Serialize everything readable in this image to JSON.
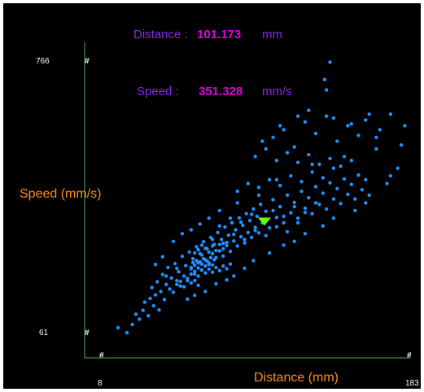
{
  "readout": {
    "distance_label": "Distance :",
    "distance_value": "101.173",
    "distance_unit": "mm",
    "speed_label": "Speed :",
    "speed_value": "351.328",
    "speed_unit": "mm/s"
  },
  "colors": {
    "background": "#000000",
    "axis": "#4caf50",
    "points": "#1e90ff",
    "cursor": "#66ff00",
    "axis_title": "#ff8c1a",
    "readout_label": "#8a2be2",
    "readout_value": "#e000e0"
  },
  "chart_data": {
    "type": "scatter",
    "xlabel": "Distance (mm)",
    "ylabel": "Speed (mm/s)",
    "x_tick_labels": [
      "8",
      "183"
    ],
    "y_tick_labels": [
      "61",
      "766"
    ],
    "xlim": [
      8,
      183
    ],
    "ylim": [
      61,
      766
    ],
    "grid": false,
    "cursor": {
      "x": 101.173,
      "y": 351.328,
      "shape": "triangle-down"
    },
    "series": [
      {
        "points": [
          [
            19,
            76
          ],
          [
            24,
            63
          ],
          [
            27,
            84
          ],
          [
            29,
            111
          ],
          [
            31,
            98
          ],
          [
            33,
            121
          ],
          [
            34,
            142
          ],
          [
            36,
            107
          ],
          [
            37,
            152
          ],
          [
            38,
            180
          ],
          [
            39,
            133
          ],
          [
            40,
            161
          ],
          [
            41,
            195
          ],
          [
            42,
            122
          ],
          [
            43,
            170
          ],
          [
            44,
            214
          ],
          [
            45,
            149
          ],
          [
            46,
            188
          ],
          [
            47,
            232
          ],
          [
            48,
            176
          ],
          [
            49,
            205
          ],
          [
            50,
            168
          ],
          [
            51,
            242
          ],
          [
            52,
            198
          ],
          [
            53,
            221
          ],
          [
            54,
            184
          ],
          [
            55,
            261
          ],
          [
            56,
            210
          ],
          [
            57,
            237
          ],
          [
            58,
            198
          ],
          [
            59,
            272
          ],
          [
            60,
            229
          ],
          [
            61,
            255
          ],
          [
            62,
            215
          ],
          [
            63,
            286
          ],
          [
            64,
            244
          ],
          [
            65,
            268
          ],
          [
            66,
            226
          ],
          [
            67,
            299
          ],
          [
            68,
            252
          ],
          [
            69,
            281
          ],
          [
            70,
            240
          ],
          [
            71,
            310
          ],
          [
            72,
            268
          ],
          [
            73,
            292
          ],
          [
            74,
            258
          ],
          [
            75,
            323
          ],
          [
            76,
            275
          ],
          [
            77,
            305
          ],
          [
            78,
            262
          ],
          [
            79,
            337
          ],
          [
            80,
            289
          ],
          [
            81,
            316
          ],
          [
            82,
            274
          ],
          [
            83,
            348
          ],
          [
            84,
            301
          ],
          [
            85,
            330
          ],
          [
            86,
            288
          ],
          [
            87,
            361
          ],
          [
            88,
            312
          ],
          [
            89,
            342
          ],
          [
            90,
            296
          ],
          [
            91,
            372
          ],
          [
            92,
            323
          ],
          [
            93,
            354
          ],
          [
            94,
            310
          ],
          [
            95,
            384
          ],
          [
            96,
            336
          ],
          [
            97,
            365
          ],
          [
            98,
            322
          ],
          [
            99,
            396
          ],
          [
            100,
            348
          ],
          [
            102,
            378
          ],
          [
            104,
            335
          ],
          [
            106,
            408
          ],
          [
            108,
            362
          ],
          [
            110,
            390
          ],
          [
            112,
            348
          ],
          [
            114,
            420
          ],
          [
            116,
            374
          ],
          [
            118,
            401
          ],
          [
            120,
            360
          ],
          [
            122,
            430
          ],
          [
            124,
            386
          ],
          [
            126,
            413
          ],
          [
            128,
            372
          ],
          [
            130,
            442
          ],
          [
            132,
            396
          ],
          [
            134,
            425
          ],
          [
            136,
            384
          ],
          [
            138,
            452
          ],
          [
            140,
            410
          ],
          [
            142,
            437
          ],
          [
            144,
            398
          ],
          [
            146,
            462
          ],
          [
            148,
            422
          ],
          [
            150,
            448
          ],
          [
            152,
            410
          ],
          [
            154,
            472
          ],
          [
            156,
            434
          ],
          [
            158,
            460
          ],
          [
            160,
            420
          ],
          [
            60,
            232
          ],
          [
            61,
            245
          ],
          [
            62,
            238
          ],
          [
            63,
            250
          ],
          [
            64,
            231
          ],
          [
            65,
            247
          ],
          [
            66,
            241
          ],
          [
            67,
            255
          ],
          [
            68,
            236
          ],
          [
            69,
            249
          ],
          [
            70,
            244
          ],
          [
            71,
            258
          ],
          [
            72,
            239
          ],
          [
            73,
            252
          ],
          [
            60,
            215
          ],
          [
            62,
            222
          ],
          [
            64,
            210
          ],
          [
            66,
            225
          ],
          [
            68,
            218
          ],
          [
            70,
            228
          ],
          [
            72,
            220
          ],
          [
            74,
            232
          ],
          [
            76,
            224
          ],
          [
            78,
            236
          ],
          [
            80,
            229
          ],
          [
            82,
            241
          ],
          [
            62,
            270
          ],
          [
            64,
            278
          ],
          [
            66,
            265
          ],
          [
            68,
            282
          ],
          [
            70,
            272
          ],
          [
            72,
            288
          ],
          [
            74,
            276
          ],
          [
            76,
            292
          ],
          [
            78,
            281
          ],
          [
            80,
            297
          ],
          [
            52,
            188
          ],
          [
            54,
            196
          ],
          [
            56,
            182
          ],
          [
            58,
            204
          ],
          [
            60,
            192
          ],
          [
            62,
            198
          ],
          [
            64,
            186
          ],
          [
            40,
            240
          ],
          [
            44,
            260
          ],
          [
            46,
            210
          ],
          [
            50,
            300
          ],
          [
            52,
            230
          ],
          [
            55,
            320
          ],
          [
            58,
            150
          ],
          [
            60,
            330
          ],
          [
            62,
            160
          ],
          [
            65,
            345
          ],
          [
            68,
            170
          ],
          [
            70,
            360
          ],
          [
            74,
            190
          ],
          [
            76,
            380
          ],
          [
            80,
            200
          ],
          [
            84,
            210
          ],
          [
            86,
            400
          ],
          [
            90,
            230
          ],
          [
            95,
            250
          ],
          [
            98,
            420
          ],
          [
            104,
            270
          ],
          [
            108,
            460
          ],
          [
            112,
            290
          ],
          [
            118,
            300
          ],
          [
            124,
            320
          ],
          [
            128,
            500
          ],
          [
            134,
            340
          ],
          [
            140,
            360
          ],
          [
            146,
            520
          ],
          [
            152,
            380
          ],
          [
            158,
            400
          ],
          [
            164,
            540
          ],
          [
            170,
            450
          ],
          [
            176,
            490
          ],
          [
            106,
            570
          ],
          [
            112,
            590
          ],
          [
            118,
            545
          ],
          [
            124,
            610
          ],
          [
            130,
            580
          ],
          [
            136,
            625
          ],
          [
            142,
            560
          ],
          [
            148,
            600
          ],
          [
            154,
            575
          ],
          [
            160,
            630
          ],
          [
            166,
            590
          ],
          [
            172,
            470
          ],
          [
            100,
            560
          ],
          [
            110,
            600
          ],
          [
            120,
            625
          ],
          [
            126,
            640
          ],
          [
            140,
            620
          ],
          [
            150,
            605
          ],
          [
            135,
            720
          ],
          [
            138,
            765
          ],
          [
            136,
            693
          ],
          [
            180,
            600
          ],
          [
            172,
            630
          ],
          [
            158,
            615
          ],
          [
            164,
            570
          ],
          [
            178,
            550
          ],
          [
            96,
            520
          ],
          [
            102,
            540
          ],
          [
            108,
            510
          ],
          [
            114,
            530
          ],
          [
            120,
            505
          ],
          [
            126,
            525
          ],
          [
            132,
            500
          ],
          [
            138,
            515
          ],
          [
            144,
            495
          ],
          [
            150,
            510
          ],
          [
            86,
            430
          ],
          [
            92,
            450
          ],
          [
            98,
            440
          ],
          [
            104,
            460
          ],
          [
            110,
            445
          ],
          [
            116,
            470
          ],
          [
            122,
            455
          ],
          [
            128,
            480
          ],
          [
            134,
            465
          ],
          [
            140,
            490
          ],
          [
            76,
            340
          ],
          [
            82,
            360
          ],
          [
            88,
            350
          ],
          [
            94,
            370
          ],
          [
            100,
            355
          ],
          [
            106,
            380
          ],
          [
            112,
            365
          ],
          [
            118,
            390
          ],
          [
            124,
            375
          ],
          [
            130,
            400
          ],
          [
            66,
            290
          ],
          [
            72,
            305
          ],
          [
            78,
            295
          ],
          [
            84,
            318
          ],
          [
            90,
            305
          ],
          [
            96,
            328
          ],
          [
            102,
            315
          ],
          [
            108,
            338
          ],
          [
            114,
            325
          ],
          [
            120,
            348
          ]
        ]
      }
    ]
  }
}
